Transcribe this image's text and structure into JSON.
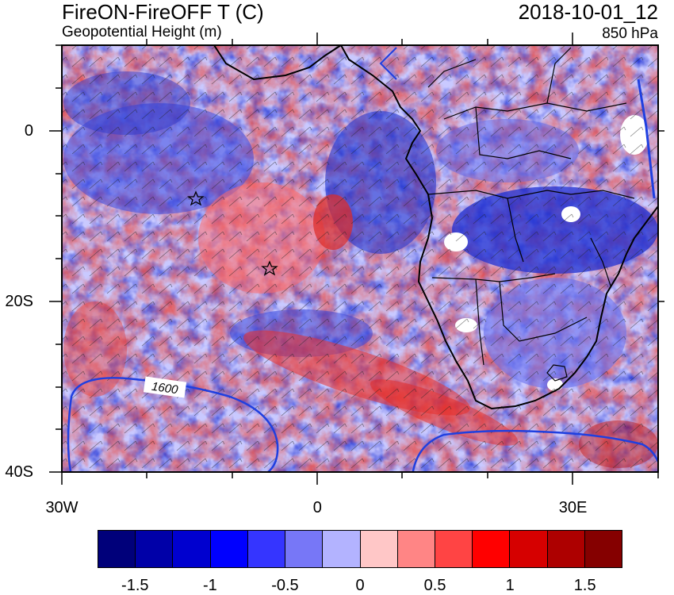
{
  "header": {
    "title": "FireON-FireOFF T (C)",
    "subtitle": "Geopotential Height (m)",
    "datetime": "2018-10-01_12",
    "level": "850 hPa"
  },
  "map": {
    "lat_labels": [
      {
        "id": "lat-0",
        "text": "0",
        "lat": 0
      },
      {
        "id": "lat-20s",
        "text": "20S",
        "lat": -20
      },
      {
        "id": "lat-40s",
        "text": "40S",
        "lat": -40
      }
    ],
    "lon_labels": [
      {
        "id": "lon-30w",
        "text": "30W",
        "lon": -30
      },
      {
        "id": "lon-0",
        "text": "0",
        "lon": 0
      },
      {
        "id": "lon-30e",
        "text": "30E",
        "lon": 30
      }
    ],
    "extent": {
      "lon_min": -30,
      "lon_max": 40,
      "lat_min": -40,
      "lat_max": 10
    },
    "contour_label": "1600",
    "colors": {
      "ocean_noise_red": "#e8403a",
      "ocean_noise_blue": "#3c4fe0",
      "contour": "#1f3fe0",
      "coast": "#000000"
    }
  },
  "colorbar": {
    "colors": [
      "#00007a",
      "#0000a8",
      "#0000cf",
      "#0000ff",
      "#3535ff",
      "#7777f7",
      "#b3b3ff",
      "#ffc7c7",
      "#ff8585",
      "#ff4444",
      "#ff0000",
      "#d60000",
      "#ad0000",
      "#850000"
    ],
    "labels": [
      {
        "id": "cb-label-m1-5",
        "text": "-1.5",
        "index": 1
      },
      {
        "id": "cb-label-m1",
        "text": "-1",
        "index": 3
      },
      {
        "id": "cb-label-m0-5",
        "text": "-0.5",
        "index": 5
      },
      {
        "id": "cb-label-0",
        "text": "0",
        "index": 7
      },
      {
        "id": "cb-label-0-5",
        "text": "0.5",
        "index": 9
      },
      {
        "id": "cb-label-1",
        "text": "1",
        "index": 11
      },
      {
        "id": "cb-label-1-5",
        "text": "1.5",
        "index": 13
      }
    ]
  }
}
